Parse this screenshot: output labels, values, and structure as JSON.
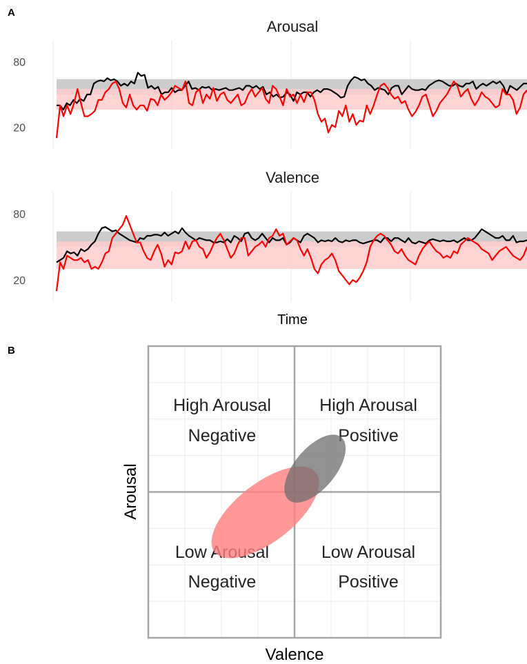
{
  "panel_labels": {
    "a": "A",
    "b": "B"
  },
  "chart_data": [
    {
      "type": "line",
      "title": "Arousal",
      "xlabel": "",
      "ylabel": "",
      "ylim": [
        0,
        100
      ],
      "yticks": [
        20,
        80
      ],
      "ytick_labels": [
        "20",
        "80"
      ],
      "grid": true,
      "bands": [
        {
          "color": "#cccccc",
          "range": [
            50,
            64
          ]
        },
        {
          "color": "#ffcccc",
          "range": [
            36,
            55
          ]
        }
      ],
      "series": [
        {
          "color": "#000000",
          "values": [
            40,
            40,
            36,
            42,
            40,
            45,
            42,
            46,
            44,
            50,
            50,
            60,
            62,
            63,
            62,
            65,
            63,
            64,
            62,
            58,
            60,
            58,
            62,
            60,
            70,
            67,
            68,
            56,
            58,
            55,
            57,
            50,
            52,
            52,
            56,
            52,
            54,
            54,
            58,
            62,
            55,
            56,
            54,
            57,
            56,
            57,
            54,
            55,
            54,
            55,
            56,
            54,
            54,
            55,
            56,
            54,
            58,
            58,
            56,
            58,
            55,
            57,
            50,
            52,
            48,
            50,
            47,
            48,
            52,
            50,
            44,
            52,
            50,
            52,
            52,
            48,
            52,
            54,
            52,
            55,
            55,
            54,
            52,
            50,
            47,
            48,
            58,
            63,
            66,
            65,
            63,
            64,
            60,
            58,
            54,
            56,
            55,
            54,
            50,
            56,
            58,
            58,
            50,
            54,
            58,
            55,
            54,
            54,
            55,
            54,
            58,
            60,
            62,
            63,
            62,
            60,
            58,
            58,
            60,
            58,
            57,
            60,
            60,
            62,
            55,
            58,
            60,
            58,
            60,
            62,
            60,
            62,
            58,
            50,
            58,
            56,
            54,
            57,
            60,
            60
          ]
        },
        {
          "color": "#ff0000",
          "values": [
            10,
            40,
            30,
            40,
            32,
            42,
            55,
            42,
            30,
            30,
            32,
            35,
            45,
            45,
            52,
            55,
            60,
            62,
            55,
            42,
            38,
            50,
            40,
            36,
            40,
            40,
            35,
            46,
            45,
            40,
            50,
            45,
            48,
            52,
            58,
            56,
            54,
            62,
            42,
            40,
            52,
            55,
            42,
            50,
            46,
            56,
            44,
            50,
            52,
            45,
            42,
            46,
            50,
            40,
            42,
            50,
            55,
            48,
            52,
            56,
            46,
            42,
            58,
            55,
            48,
            40,
            55,
            48,
            50,
            42,
            50,
            43,
            52,
            52,
            45,
            32,
            25,
            28,
            15,
            22,
            20,
            35,
            30,
            40,
            25,
            32,
            22,
            26,
            25,
            40,
            32,
            40,
            50,
            58,
            60,
            56,
            50,
            46,
            48,
            42,
            44,
            36,
            30,
            34,
            40,
            48,
            50,
            40,
            30,
            35,
            42,
            46,
            50,
            56,
            62,
            58,
            48,
            52,
            55,
            46,
            40,
            45,
            52,
            48,
            46,
            42,
            38,
            40,
            55,
            50,
            50,
            45,
            32,
            38,
            50,
            54
          ]
        }
      ]
    },
    {
      "type": "line",
      "title": "Valence",
      "xlabel": "Time",
      "ylabel": "",
      "ylim": [
        0,
        100
      ],
      "yticks": [
        20,
        80
      ],
      "ytick_labels": [
        "20",
        "80"
      ],
      "grid": true,
      "bands": [
        {
          "color": "#cccccc",
          "range": [
            50,
            64
          ]
        },
        {
          "color": "#ffcccc",
          "range": [
            30,
            55
          ]
        }
      ],
      "series": [
        {
          "color": "#000000",
          "values": [
            36,
            38,
            40,
            46,
            44,
            45,
            42,
            48,
            46,
            48,
            52,
            55,
            62,
            67,
            68,
            66,
            64,
            65,
            62,
            60,
            58,
            56,
            55,
            54,
            58,
            57,
            60,
            60,
            61,
            61,
            60,
            63,
            60,
            62,
            64,
            62,
            67,
            63,
            60,
            58,
            56,
            58,
            57,
            56,
            56,
            54,
            54,
            55,
            54,
            57,
            54,
            60,
            58,
            55,
            62,
            63,
            58,
            56,
            58,
            62,
            58,
            54,
            58,
            56,
            56,
            58,
            52,
            54,
            58,
            56,
            54,
            60,
            62,
            60,
            58,
            54,
            56,
            55,
            56,
            55,
            58,
            55,
            54,
            56,
            55,
            56,
            56,
            54,
            53,
            54,
            55,
            56,
            56,
            54,
            58,
            58,
            55,
            58,
            58,
            56,
            54,
            58,
            54,
            53,
            55,
            54,
            53,
            56,
            57,
            56,
            55,
            56,
            55,
            55,
            56,
            54,
            56,
            58,
            56,
            56,
            58,
            62,
            66,
            64,
            62,
            60,
            58,
            58,
            60,
            56,
            56,
            60,
            54,
            55,
            55,
            56
          ]
        },
        {
          "color": "#ff0000",
          "values": [
            10,
            36,
            30,
            42,
            40,
            38,
            38,
            40,
            36,
            38,
            30,
            32,
            30,
            36,
            44,
            46,
            58,
            62,
            66,
            70,
            78,
            70,
            62,
            54,
            54,
            46,
            40,
            38,
            46,
            52,
            44,
            32,
            38,
            34,
            45,
            44,
            46,
            55,
            48,
            55,
            56,
            50,
            48,
            40,
            45,
            52,
            58,
            62,
            56,
            48,
            40,
            44,
            52,
            58,
            58,
            42,
            46,
            50,
            52,
            55,
            50,
            58,
            60,
            66,
            60,
            62,
            52,
            55,
            58,
            56,
            48,
            42,
            48,
            40,
            30,
            26,
            34,
            38,
            40,
            44,
            38,
            28,
            24,
            20,
            16,
            20,
            18,
            22,
            28,
            36,
            50,
            56,
            60,
            62,
            60,
            56,
            52,
            46,
            44,
            48,
            42,
            38,
            36,
            34,
            42,
            48,
            52,
            55,
            50,
            46,
            44,
            40,
            42,
            40,
            46,
            44,
            52,
            55,
            58,
            56,
            54,
            52,
            48,
            46,
            44,
            38,
            42,
            46,
            48,
            50,
            46,
            42,
            40,
            38,
            42,
            50
          ]
        }
      ]
    },
    {
      "type": "scatter",
      "subtype": "circumplex",
      "xlabel": "Valence",
      "ylabel": "Arousal",
      "grid": true,
      "quadrants": [
        {
          "line1": "High Arousal",
          "line2": "Negative"
        },
        {
          "line1": "High Arousal",
          "line2": "Positive"
        },
        {
          "line1": "Low Arousal",
          "line2": "Negative"
        },
        {
          "line1": "Low Arousal",
          "line2": "Positive"
        }
      ],
      "ellipses": [
        {
          "color": "#ff7f7f",
          "opacity": 0.8,
          "center": [
            40,
            43
          ],
          "semi_axes": [
            22,
            10
          ],
          "angle_deg": -38
        },
        {
          "color": "#6e6e6e",
          "opacity": 0.75,
          "center": [
            57,
            58
          ],
          "semi_axes": [
            14,
            7
          ],
          "angle_deg": -50
        }
      ]
    }
  ]
}
